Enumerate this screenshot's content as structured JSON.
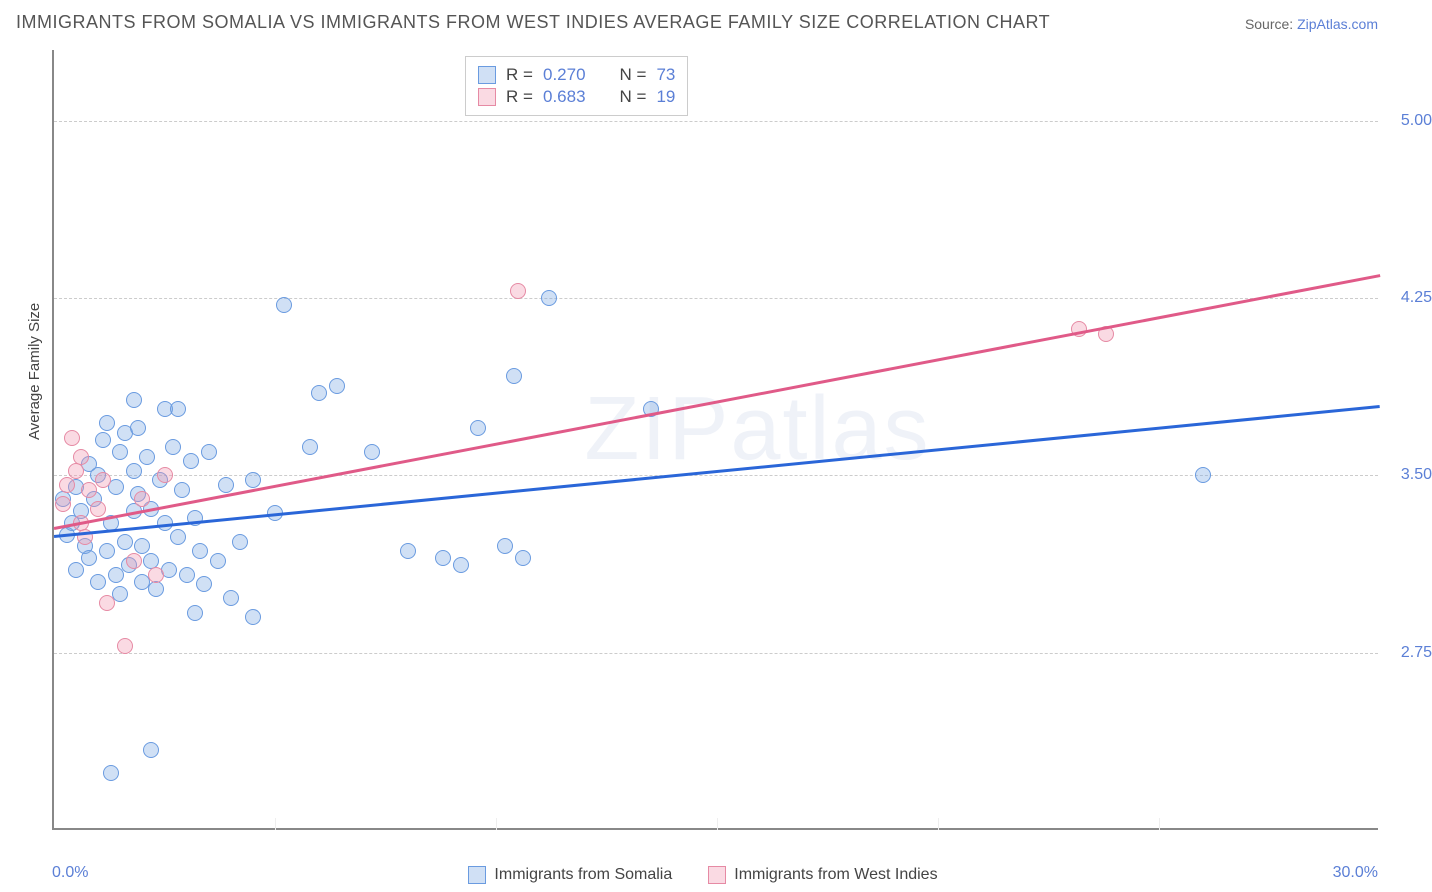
{
  "title": "IMMIGRANTS FROM SOMALIA VS IMMIGRANTS FROM WEST INDIES AVERAGE FAMILY SIZE CORRELATION CHART",
  "source_prefix": "Source: ",
  "source_link": "ZipAtlas.com",
  "watermark": "ZIPatlas",
  "y_axis_title": "Average Family Size",
  "chart": {
    "type": "scatter",
    "xlim": [
      0,
      30
    ],
    "ylim": [
      2.0,
      5.3
    ],
    "x_min_label": "0.0%",
    "x_max_label": "30.0%",
    "y_ticks": [
      2.75,
      3.5,
      4.25,
      5.0
    ],
    "y_tick_labels": [
      "2.75",
      "3.50",
      "4.25",
      "5.00"
    ],
    "x_grid": [
      5,
      10,
      15,
      20,
      25
    ],
    "background_color": "#ffffff",
    "grid_color": "#cccccc",
    "series": [
      {
        "key": "somalia",
        "label": "Immigrants from Somalia",
        "fill": "rgba(120,165,225,0.35)",
        "stroke": "#6a9be0",
        "trend_color": "#2a66d8",
        "R": "0.270",
        "N": "73",
        "trend": {
          "x1": 0,
          "y1": 3.25,
          "x2": 30,
          "y2": 3.8
        },
        "points": [
          [
            0.2,
            3.4
          ],
          [
            0.3,
            3.25
          ],
          [
            0.4,
            3.3
          ],
          [
            0.5,
            3.1
          ],
          [
            0.5,
            3.45
          ],
          [
            0.6,
            3.35
          ],
          [
            0.7,
            3.2
          ],
          [
            0.8,
            3.55
          ],
          [
            0.8,
            3.15
          ],
          [
            0.9,
            3.4
          ],
          [
            1.0,
            3.05
          ],
          [
            1.0,
            3.5
          ],
          [
            1.1,
            3.65
          ],
          [
            1.2,
            3.18
          ],
          [
            1.2,
            3.72
          ],
          [
            1.3,
            3.3
          ],
          [
            1.4,
            3.08
          ],
          [
            1.4,
            3.45
          ],
          [
            1.5,
            3.6
          ],
          [
            1.5,
            3.0
          ],
          [
            1.6,
            3.22
          ],
          [
            1.6,
            3.68
          ],
          [
            1.7,
            3.12
          ],
          [
            1.8,
            3.35
          ],
          [
            1.8,
            3.52
          ],
          [
            1.9,
            3.42
          ],
          [
            2.0,
            3.2
          ],
          [
            2.0,
            3.05
          ],
          [
            2.1,
            3.58
          ],
          [
            2.2,
            3.36
          ],
          [
            2.2,
            3.14
          ],
          [
            2.3,
            3.02
          ],
          [
            2.4,
            3.48
          ],
          [
            2.5,
            3.3
          ],
          [
            2.5,
            3.78
          ],
          [
            2.6,
            3.1
          ],
          [
            2.7,
            3.62
          ],
          [
            2.8,
            3.24
          ],
          [
            2.9,
            3.44
          ],
          [
            3.0,
            3.08
          ],
          [
            3.1,
            3.56
          ],
          [
            3.2,
            3.32
          ],
          [
            3.3,
            3.18
          ],
          [
            3.4,
            3.04
          ],
          [
            3.5,
            3.6
          ],
          [
            3.7,
            3.14
          ],
          [
            3.9,
            3.46
          ],
          [
            4.0,
            2.98
          ],
          [
            4.2,
            3.22
          ],
          [
            4.5,
            2.9
          ],
          [
            4.5,
            3.48
          ],
          [
            5.0,
            3.34
          ],
          [
            5.2,
            4.22
          ],
          [
            1.3,
            2.24
          ],
          [
            2.2,
            2.34
          ],
          [
            3.2,
            2.92
          ],
          [
            1.9,
            3.7
          ],
          [
            5.8,
            3.62
          ],
          [
            6.0,
            3.85
          ],
          [
            6.4,
            3.88
          ],
          [
            7.2,
            3.6
          ],
          [
            8.0,
            3.18
          ],
          [
            8.8,
            3.15
          ],
          [
            9.2,
            3.12
          ],
          [
            9.6,
            3.7
          ],
          [
            10.2,
            3.2
          ],
          [
            10.4,
            3.92
          ],
          [
            10.6,
            3.15
          ],
          [
            11.2,
            4.25
          ],
          [
            13.5,
            3.78
          ],
          [
            26.0,
            3.5
          ],
          [
            1.8,
            3.82
          ],
          [
            2.8,
            3.78
          ]
        ]
      },
      {
        "key": "westindies",
        "label": "Immigrants from West Indies",
        "fill": "rgba(240,150,175,0.35)",
        "stroke": "#e68aa4",
        "trend_color": "#e05a88",
        "R": "0.683",
        "N": "19",
        "trend": {
          "x1": 0,
          "y1": 3.28,
          "x2": 30,
          "y2": 4.35
        },
        "points": [
          [
            0.2,
            3.38
          ],
          [
            0.3,
            3.46
          ],
          [
            0.4,
            3.66
          ],
          [
            0.5,
            3.52
          ],
          [
            0.6,
            3.3
          ],
          [
            0.6,
            3.58
          ],
          [
            0.7,
            3.24
          ],
          [
            0.8,
            3.44
          ],
          [
            1.0,
            3.36
          ],
          [
            1.1,
            3.48
          ],
          [
            1.2,
            2.96
          ],
          [
            1.6,
            2.78
          ],
          [
            1.8,
            3.14
          ],
          [
            2.0,
            3.4
          ],
          [
            2.3,
            3.08
          ],
          [
            2.5,
            3.5
          ],
          [
            10.5,
            4.28
          ],
          [
            23.2,
            4.12
          ],
          [
            23.8,
            4.1
          ]
        ]
      }
    ]
  },
  "top_legend": {
    "rows": [
      {
        "swatch_series": 0,
        "R_label": "R =",
        "N_label": "N =",
        "R": "0.270",
        "N": "73"
      },
      {
        "swatch_series": 1,
        "R_label": "R =",
        "N_label": "N =",
        "R": "0.683",
        "N": "19"
      }
    ]
  }
}
